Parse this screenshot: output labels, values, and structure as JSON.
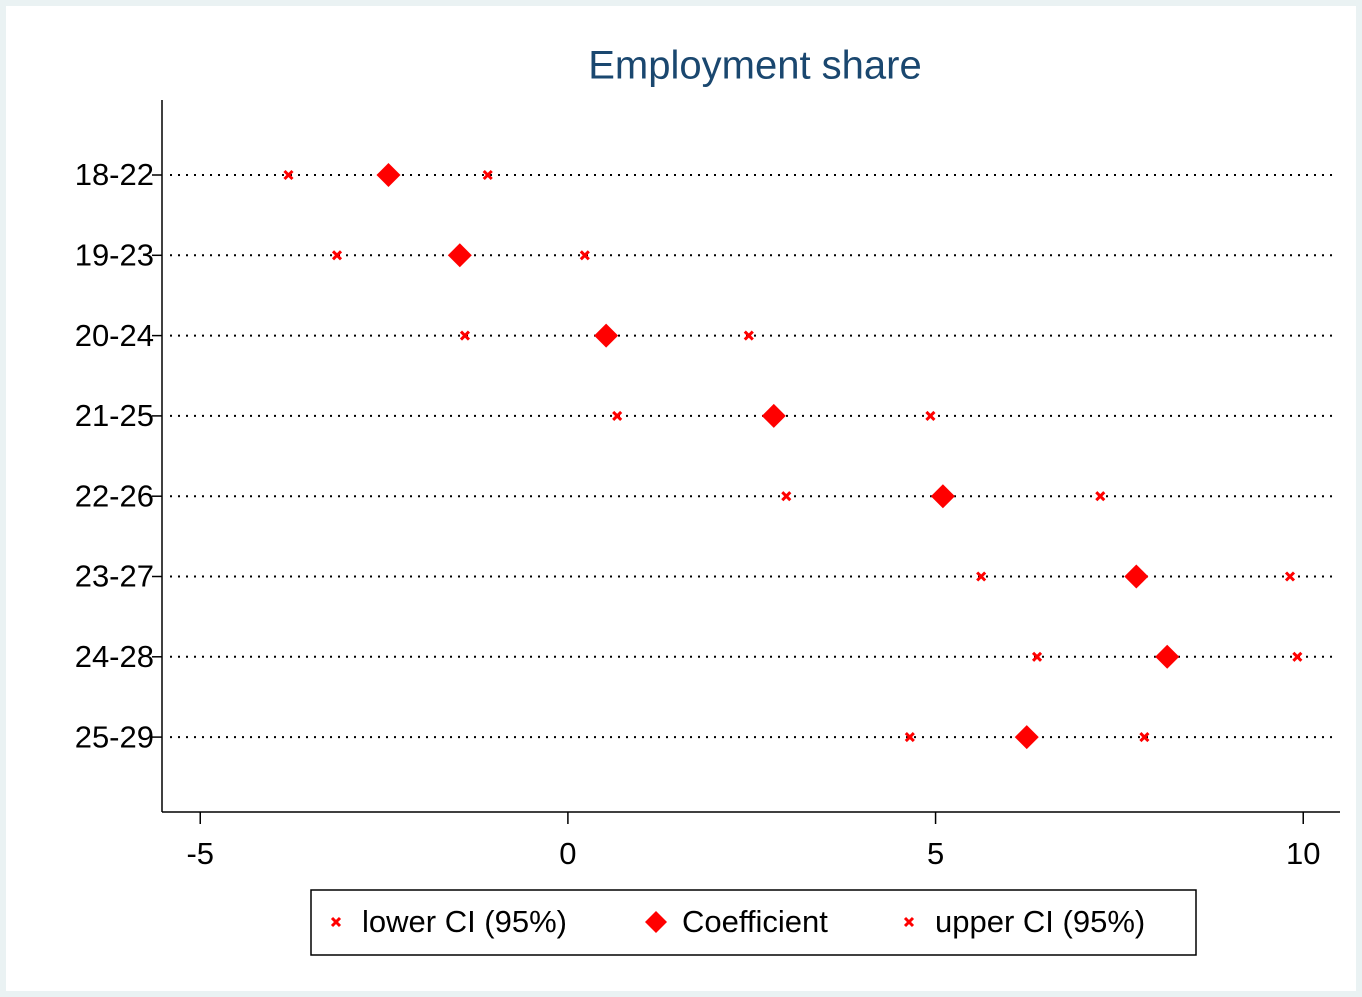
{
  "chart_data": {
    "type": "dot",
    "title": "Employment share",
    "categories": [
      "18-22",
      "19-23",
      "20-24",
      "21-25",
      "22-26",
      "23-27",
      "24-28",
      "25-29"
    ],
    "series": [
      {
        "name": "lower CI (95%)",
        "color": "#ff0000",
        "marker": "x",
        "values": [
          -3.8,
          -3.14,
          -1.4,
          0.67,
          2.97,
          5.62,
          6.38,
          4.65
        ]
      },
      {
        "name": "Coefficient",
        "color": "#ff0000",
        "marker": "diamond",
        "values": [
          -2.44,
          -1.47,
          0.52,
          2.8,
          5.1,
          7.73,
          8.15,
          6.24
        ]
      },
      {
        "name": "upper CI (95%)",
        "color": "#ff0000",
        "marker": "x",
        "values": [
          -1.09,
          0.23,
          2.46,
          4.93,
          7.24,
          9.82,
          9.92,
          7.84
        ]
      }
    ],
    "xlim": [
      -5.52,
      10.5
    ],
    "xticks": [
      -5,
      0,
      5,
      10
    ],
    "legend": "bottom"
  }
}
